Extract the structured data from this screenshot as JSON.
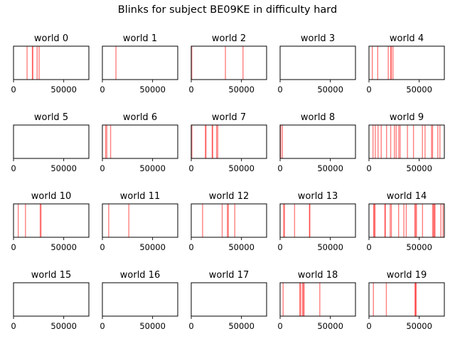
{
  "title": "Blinks for subject BE09KE in difficulty hard",
  "chart_data": {
    "type": "event-strip",
    "title": "Blinks for subject BE09KE in difficulty hard",
    "mark_color": "#ff0000",
    "mark_opacity": 0.5,
    "grid": false,
    "xlim": [
      0,
      75000
    ],
    "xticks": [
      0,
      50000
    ],
    "xtick_labels": [
      "0",
      "50000"
    ],
    "subplots": [
      {
        "title": "world 0",
        "events": [
          13500,
          18800,
          19200,
          23500,
          25500
        ]
      },
      {
        "title": "world 1",
        "events": [
          13500
        ]
      },
      {
        "title": "world 2",
        "events": [
          500,
          34000,
          51500
        ]
      },
      {
        "title": "world 3",
        "events": []
      },
      {
        "title": "world 4",
        "events": [
          3300,
          8700,
          19200,
          21600,
          22300,
          23900
        ]
      },
      {
        "title": "world 5",
        "events": []
      },
      {
        "title": "world 6",
        "events": [
          3200,
          4400,
          8200
        ]
      },
      {
        "title": "world 7",
        "events": [
          600,
          14100,
          14600,
          20900,
          21300,
          25200,
          26400
        ]
      },
      {
        "title": "world 8",
        "events": [
          600,
          2300
        ]
      },
      {
        "title": "world 9",
        "events": [
          4000,
          6300,
          9000,
          12200,
          17500,
          21600,
          25300,
          27100,
          29700,
          31000,
          38300,
          44300,
          53200,
          55800,
          62300,
          63300,
          68500,
          70600
        ]
      },
      {
        "title": "world 10",
        "events": [
          4700,
          11900,
          26600,
          27300
        ]
      },
      {
        "title": "world 11",
        "events": [
          6300,
          26300
        ]
      },
      {
        "title": "world 12",
        "events": [
          11300,
          30800,
          36000,
          36900,
          43300
        ]
      },
      {
        "title": "world 13",
        "events": [
          3500,
          4400,
          14400,
          29200,
          29600
        ]
      },
      {
        "title": "world 14",
        "events": [
          4600,
          5300,
          6000,
          15800,
          16400,
          21100,
          22300,
          29500,
          34700,
          37100,
          45600,
          46400,
          47300,
          53300,
          63300,
          64200,
          64900,
          65700,
          71500,
          73800
        ]
      },
      {
        "title": "world 15",
        "events": []
      },
      {
        "title": "world 16",
        "events": []
      },
      {
        "title": "world 17",
        "events": []
      },
      {
        "title": "world 18",
        "events": [
          3000,
          19600,
          20300,
          22200,
          23200,
          23800,
          39500
        ]
      },
      {
        "title": "world 19",
        "events": [
          4400,
          17300,
          45800,
          46400,
          46900
        ]
      }
    ]
  }
}
